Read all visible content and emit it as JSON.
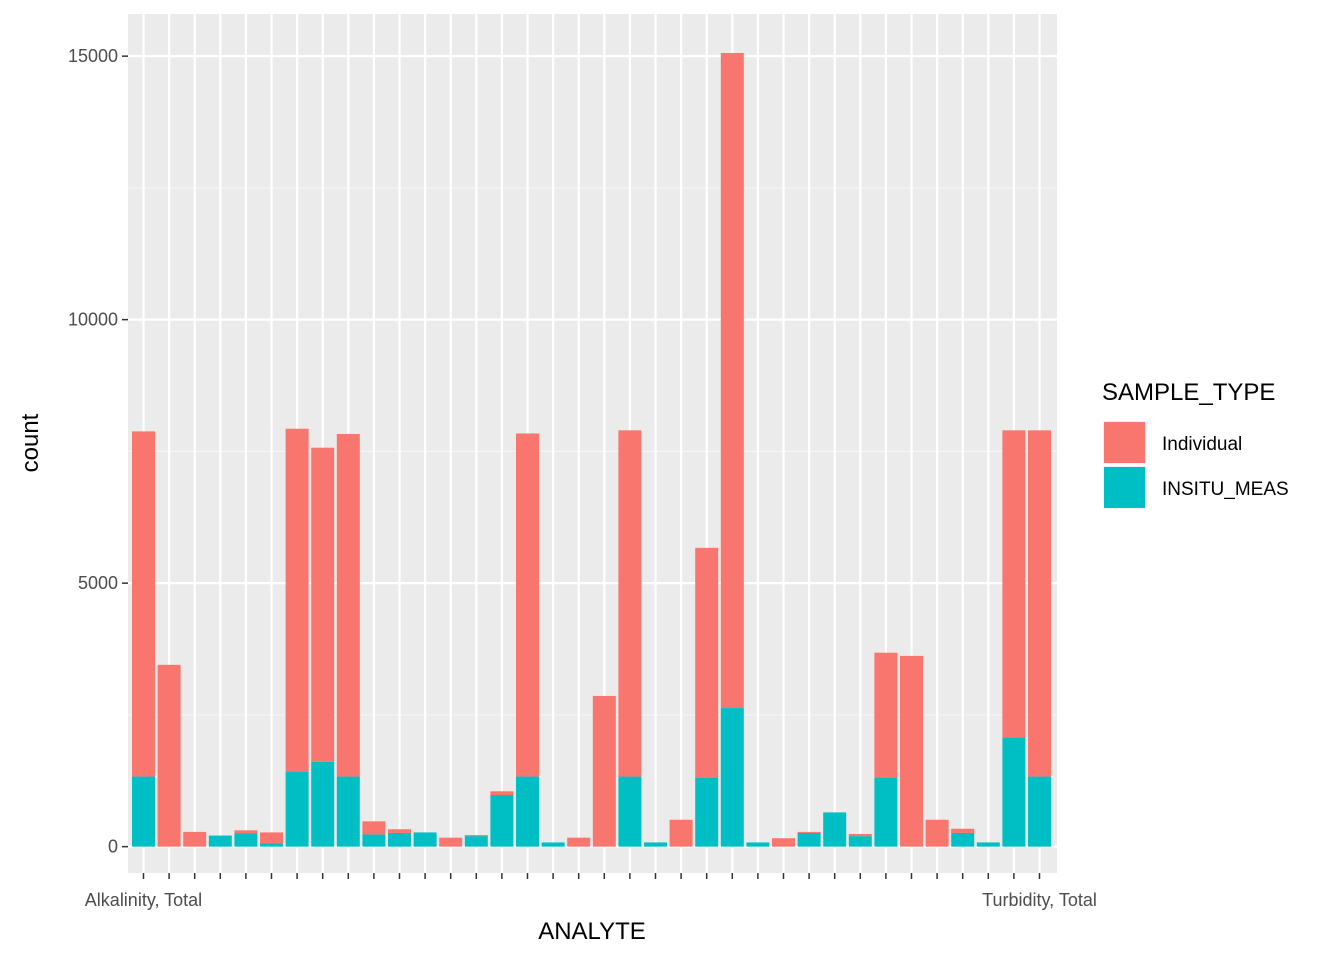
{
  "chart_data": {
    "type": "bar",
    "stacked": true,
    "xlabel": "ANALYTE",
    "ylabel": "count",
    "ylim": [
      -500,
      15800
    ],
    "yticks": [
      0,
      5000,
      10000,
      15000
    ],
    "grid": true,
    "legend": {
      "title": "SAMPLE_TYPE",
      "position": "right",
      "entries": [
        {
          "name": "Individual",
          "color": "#F8766D"
        },
        {
          "name": "INSITU_MEAS",
          "color": "#00BFC4"
        }
      ]
    },
    "category_count": 36,
    "first_category_label": "Alkalinity, Total",
    "last_category_label": "Turbidity, Total",
    "series": [
      {
        "name": "Individual",
        "color": "#F8766D",
        "values": [
          6550,
          3450,
          280,
          0,
          60,
          210,
          6500,
          5960,
          6500,
          250,
          70,
          0,
          170,
          20,
          70,
          6510,
          0,
          170,
          2860,
          6570,
          0,
          510,
          4360,
          12430,
          0,
          160,
          20,
          0,
          40,
          2370,
          3620,
          510,
          80,
          0,
          5830,
          6570
        ]
      },
      {
        "name": "INSITU_MEAS",
        "color": "#00BFC4",
        "values": [
          1330,
          0,
          0,
          210,
          250,
          60,
          1430,
          1610,
          1330,
          230,
          260,
          270,
          0,
          200,
          980,
          1330,
          80,
          0,
          0,
          1330,
          80,
          0,
          1310,
          2630,
          80,
          0,
          260,
          650,
          200,
          1310,
          0,
          0,
          260,
          80,
          2070,
          1330
        ]
      }
    ]
  }
}
